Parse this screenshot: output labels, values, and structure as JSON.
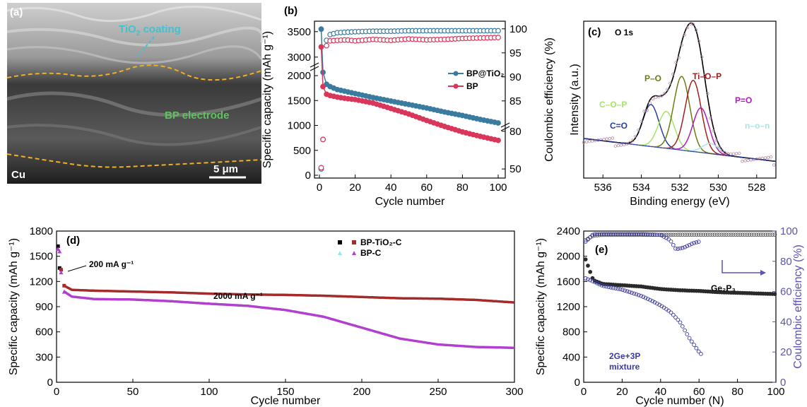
{
  "panel_a": {
    "label": "(a)",
    "coating_label": "TiO",
    "coating_sub": "2",
    "coating_tail": " coating",
    "electrode_label": "BP electrode",
    "substrate_label": "Cu",
    "scale_label": "5 μm"
  },
  "panel_b": {
    "label": "(b)",
    "xlabel": "Cycle number",
    "ylabel_left": "Specific capacity (mAh g⁻¹)",
    "ylabel_right": "Coulombic efficiency (%)",
    "x_ticks": [
      "0",
      "20",
      "40",
      "60",
      "80",
      "100"
    ],
    "y_ticks_lower": [
      "0",
      "500",
      "1000",
      "1500",
      "2000"
    ],
    "y_ticks_upper": [
      "3000",
      "3500"
    ],
    "y_ticks_right": [
      "50",
      "80",
      "85",
      "90",
      "95",
      "100"
    ],
    "legend": [
      "BP@TiO₂",
      "BP"
    ],
    "colors": {
      "bp_tio2": "#3a7ca0",
      "bp": "#d8365a"
    }
  },
  "panel_c": {
    "label": "(c)",
    "title": "O 1s",
    "xlabel": "Binding energy (eV)",
    "ylabel": "Intensity (a.u.)",
    "x_ticks": [
      "536",
      "534",
      "532",
      "530",
      "528"
    ],
    "peaks": [
      {
        "name": "C=O",
        "color": "#2a3c9c"
      },
      {
        "name": "C–O–P",
        "color": "#a6e36a"
      },
      {
        "name": "P–O",
        "color": "#6b7a12"
      },
      {
        "name": "Ti–O–P",
        "color": "#a02020"
      },
      {
        "name": "P=O",
        "color": "#b01cb8"
      },
      {
        "name": "n–o–n",
        "color": "#a6e6e6"
      }
    ]
  },
  "panel_d": {
    "label": "(d)",
    "xlabel": "Cycle number",
    "ylabel": "Specific capacity (mAh g⁻¹)",
    "x_ticks": [
      "0",
      "50",
      "100",
      "150",
      "200",
      "250",
      "300"
    ],
    "y_ticks": [
      "0",
      "300",
      "600",
      "900",
      "1200",
      "1500",
      "1800"
    ],
    "legend": [
      "BP-TiO₂-C",
      "BP-C"
    ],
    "annotation_low_rate": "200 mA g⁻¹",
    "annotation_high_rate": "2000 mA g⁻¹",
    "colors": {
      "bp_tio2_c": "#a52a2a",
      "bp_c": "#b140d0"
    }
  },
  "panel_e": {
    "label": "(e)",
    "xlabel": "Cycle number (N)",
    "ylabel_left": "Specific capacity (mAh g⁻¹)",
    "ylabel_right": "Coulombic efficiency (%)",
    "x_ticks": [
      "0",
      "20",
      "40",
      "60",
      "80",
      "100"
    ],
    "y_ticks_left": [
      "0",
      "400",
      "800",
      "1200",
      "1600",
      "2000",
      "2400"
    ],
    "y_ticks_right": [
      "0",
      "20",
      "40",
      "60",
      "80",
      "100"
    ],
    "series_ge2p3": "Ge₂P₃",
    "series_mix_1": "2Ge+3P",
    "series_mix_2": "mixture",
    "colors": {
      "ge2p3": "#2a2a2a",
      "mix": "#3b3ba0",
      "axis_right": "#5b55b0"
    }
  },
  "chart_data": [
    {
      "panel": "b",
      "type": "scatter",
      "xlabel": "Cycle number",
      "ylabel": "Specific capacity (mAh g⁻¹)",
      "y2label": "Coulombic efficiency (%)",
      "xlim": [
        0,
        100
      ],
      "ylim_broken": [
        [
          0,
          2100
        ],
        [
          2900,
          3650
        ]
      ],
      "y2lim_broken": [
        [
          45,
          81
        ],
        [
          81,
          101
        ]
      ],
      "x": [
        1,
        3,
        6,
        10,
        15,
        20,
        30,
        40,
        50,
        60,
        70,
        80,
        90,
        100
      ],
      "series": [
        {
          "name": "BP@TiO₂",
          "axis": "capacity",
          "values": [
            3550,
            1850,
            1780,
            1720,
            1680,
            1640,
            1560,
            1490,
            1420,
            1350,
            1270,
            1200,
            1120,
            1050
          ]
        },
        {
          "name": "BP",
          "axis": "capacity",
          "values": [
            3200,
            1640,
            1600,
            1570,
            1540,
            1520,
            1450,
            1340,
            1230,
            1100,
            980,
            870,
            780,
            700
          ]
        },
        {
          "name": "BP@TiO₂",
          "axis": "efficiency",
          "values": [
            50,
            97,
            98.8,
            99.2,
            99.3,
            99.4,
            99.5,
            99.5,
            99.6,
            99.6,
            99.6,
            99.6,
            99.6,
            99.6
          ]
        },
        {
          "name": "BP",
          "axis": "efficiency",
          "values": [
            51,
            96,
            97.5,
            97.6,
            97.7,
            97.5,
            97.8,
            97.6,
            97.9,
            97.7,
            97.8,
            98.0,
            98.1,
            98.2
          ]
        }
      ]
    },
    {
      "panel": "c",
      "type": "line",
      "xlabel": "Binding energy (eV)",
      "ylabel": "Intensity (a.u.)",
      "xlim": [
        537,
        527
      ],
      "x_reversed": true,
      "peaks": [
        {
          "name": "C=O",
          "center": 533.5,
          "height": 0.33
        },
        {
          "name": "C–O–P",
          "center": 532.7,
          "height": 0.29
        },
        {
          "name": "P–O",
          "center": 531.9,
          "height": 0.58
        },
        {
          "name": "Ti–O–P",
          "center": 531.3,
          "height": 0.56
        },
        {
          "name": "P=O",
          "center": 530.9,
          "height": 0.35
        },
        {
          "name": "n–o–n",
          "center": 530.4,
          "height": 0.08
        }
      ]
    },
    {
      "panel": "d",
      "type": "scatter",
      "xlabel": "Cycle number",
      "ylabel": "Specific capacity (mAh g⁻¹)",
      "xlim": [
        0,
        300
      ],
      "ylim": [
        0,
        1800
      ],
      "x": [
        1,
        2,
        3,
        5,
        10,
        25,
        50,
        75,
        100,
        125,
        150,
        175,
        200,
        225,
        250,
        275,
        300
      ],
      "series": [
        {
          "name": "BP-TiO₂-C",
          "values": [
            1620,
            1360,
            1340,
            1150,
            1100,
            1090,
            1080,
            1070,
            1055,
            1045,
            1040,
            1030,
            1015,
            1000,
            995,
            980,
            950
          ]
        },
        {
          "name": "BP-C",
          "values": [
            1590,
            1560,
            1310,
            1080,
            1020,
            990,
            985,
            965,
            935,
            910,
            860,
            780,
            650,
            520,
            450,
            420,
            410
          ]
        }
      ]
    },
    {
      "panel": "e",
      "type": "scatter",
      "xlabel": "Cycle number (N)",
      "ylabel": "Specific capacity (mAh g⁻¹)",
      "y2label": "Coulombic efficiency (%)",
      "xlim": [
        0,
        100
      ],
      "ylim": [
        0,
        2400
      ],
      "y2lim": [
        0,
        100
      ],
      "series": [
        {
          "name": "Ge₂P₃",
          "axis": "capacity",
          "x": [
            1,
            5,
            10,
            20,
            30,
            40,
            50,
            60,
            70,
            80,
            90,
            100
          ],
          "values": [
            1950,
            1620,
            1560,
            1540,
            1520,
            1480,
            1460,
            1450,
            1430,
            1420,
            1410,
            1400
          ]
        },
        {
          "name": "2Ge+3P mixture",
          "axis": "capacity",
          "x": [
            1,
            5,
            10,
            20,
            30,
            35,
            40,
            45,
            50,
            55,
            60,
            62
          ],
          "values": [
            1650,
            1600,
            1530,
            1470,
            1370,
            1300,
            1220,
            1120,
            960,
            700,
            480,
            420
          ]
        },
        {
          "name": "Ge₂P₃",
          "axis": "efficiency",
          "x": [
            1,
            5,
            10,
            30,
            50,
            70,
            100
          ],
          "values": [
            94,
            97,
            97.5,
            97.5,
            97.6,
            97.6,
            97.6
          ]
        },
        {
          "name": "2Ge+3P mixture",
          "axis": "efficiency",
          "x": [
            1,
            5,
            10,
            30,
            40,
            45,
            48,
            52,
            57,
            60
          ],
          "values": [
            93,
            98,
            98,
            98,
            97.5,
            94,
            88,
            89,
            92,
            93
          ]
        }
      ]
    }
  ]
}
